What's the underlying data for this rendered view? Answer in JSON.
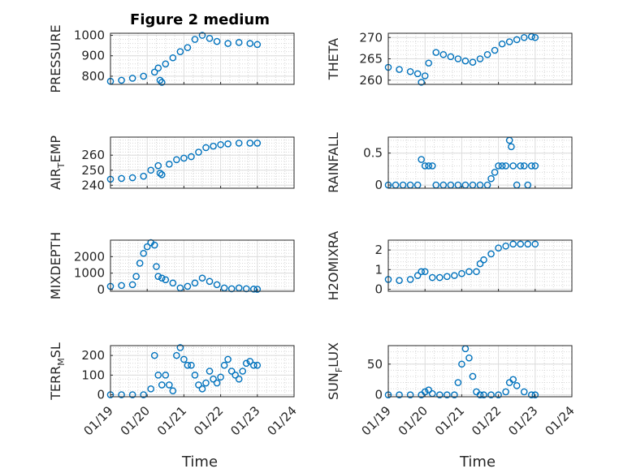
{
  "figure": {
    "title": "Figure 2 medium",
    "xlabel": "Time",
    "date_ticks": [
      "01/19",
      "01/20",
      "01/21",
      "01/22",
      "01/23",
      "01/24"
    ],
    "marker_color": "#0072BD"
  },
  "chart_data": [
    {
      "type": "scatter",
      "ylabel": "PRESSURE",
      "xlim": [
        "01/19",
        "01/24"
      ],
      "ylim": [
        760,
        1010
      ],
      "yticks": [
        "800",
        "900",
        "1000"
      ],
      "ytick_values": [
        800,
        900,
        1000
      ],
      "x": [
        0,
        0.3,
        0.6,
        0.9,
        1.2,
        1.3,
        1.35,
        1.4,
        1.5,
        1.7,
        1.9,
        2.1,
        2.3,
        2.5,
        2.7,
        2.9,
        3.2,
        3.5,
        3.8,
        4.0
      ],
      "y": [
        775,
        780,
        790,
        800,
        820,
        840,
        780,
        770,
        860,
        890,
        920,
        940,
        980,
        1000,
        985,
        970,
        960,
        965,
        960,
        955
      ]
    },
    {
      "type": "scatter",
      "ylabel": "THETA",
      "xlim": [
        "01/19",
        "01/24"
      ],
      "ylim": [
        259,
        271
      ],
      "yticks": [
        "260",
        "265",
        "270"
      ],
      "ytick_values": [
        260,
        265,
        270
      ],
      "x": [
        0,
        0.3,
        0.6,
        0.8,
        0.9,
        1.0,
        1.1,
        1.3,
        1.5,
        1.7,
        1.9,
        2.1,
        2.3,
        2.5,
        2.7,
        2.9,
        3.1,
        3.3,
        3.5,
        3.7,
        3.9,
        4.0
      ],
      "y": [
        263,
        262.5,
        262,
        261.5,
        259.5,
        261,
        264,
        266.5,
        266,
        265.5,
        265,
        264.5,
        264.2,
        265,
        266,
        267,
        268.5,
        269,
        269.5,
        270,
        270.2,
        270
      ]
    },
    {
      "type": "scatter",
      "ylabel": "AIR_TEMP",
      "xlim": [
        "01/19",
        "01/24"
      ],
      "ylim": [
        238,
        272
      ],
      "yticks": [
        "240",
        "250",
        "260"
      ],
      "ytick_values": [
        240,
        250,
        260
      ],
      "x": [
        0,
        0.3,
        0.6,
        0.9,
        1.1,
        1.3,
        1.35,
        1.4,
        1.6,
        1.8,
        2.0,
        2.2,
        2.4,
        2.6,
        2.8,
        3.0,
        3.2,
        3.5,
        3.8,
        4.0
      ],
      "y": [
        244,
        244.5,
        245,
        246,
        250,
        253,
        248,
        247,
        254,
        257,
        258,
        259,
        262,
        265,
        266,
        267,
        267.5,
        268,
        268,
        268
      ]
    },
    {
      "type": "scatter",
      "ylabel": "RAINFALL",
      "xlim": [
        "01/19",
        "01/24"
      ],
      "ylim": [
        -0.05,
        0.75
      ],
      "yticks": [
        "0",
        "0.5"
      ],
      "ytick_values": [
        0,
        0.5
      ],
      "x": [
        0,
        0.2,
        0.4,
        0.6,
        0.8,
        0.9,
        1.0,
        1.1,
        1.2,
        1.3,
        1.5,
        1.7,
        1.9,
        2.1,
        2.3,
        2.5,
        2.7,
        2.8,
        2.9,
        3.0,
        3.1,
        3.2,
        3.3,
        3.35,
        3.4,
        3.5,
        3.6,
        3.7,
        3.8,
        3.9,
        4.0
      ],
      "y": [
        0,
        0,
        0,
        0,
        0,
        0.4,
        0.3,
        0.3,
        0.3,
        0,
        0,
        0,
        0,
        0,
        0,
        0,
        0,
        0.1,
        0.2,
        0.3,
        0.3,
        0.3,
        0.7,
        0.6,
        0.3,
        0,
        0.3,
        0.3,
        0,
        0.3,
        0.3
      ]
    },
    {
      "type": "scatter",
      "ylabel": "MIXDEPTH",
      "xlim": [
        "01/19",
        "01/24"
      ],
      "ylim": [
        -100,
        3000
      ],
      "yticks": [
        "0",
        "1000",
        "2000"
      ],
      "ytick_values": [
        0,
        1000,
        2000
      ],
      "x": [
        0,
        0.3,
        0.6,
        0.7,
        0.8,
        0.9,
        1.0,
        1.1,
        1.2,
        1.25,
        1.3,
        1.4,
        1.5,
        1.7,
        1.9,
        2.1,
        2.3,
        2.5,
        2.7,
        2.9,
        3.1,
        3.3,
        3.5,
        3.7,
        3.9,
        4.0
      ],
      "y": [
        200,
        250,
        300,
        800,
        1600,
        2200,
        2600,
        2850,
        2700,
        1400,
        800,
        700,
        600,
        400,
        100,
        200,
        400,
        700,
        500,
        300,
        100,
        50,
        100,
        50,
        30,
        20
      ]
    },
    {
      "type": "scatter",
      "ylabel": "H2OMIXRA",
      "xlim": [
        "01/19",
        "01/24"
      ],
      "ylim": [
        -0.1,
        2.5
      ],
      "yticks": [
        "0",
        "1",
        "2"
      ],
      "ytick_values": [
        0,
        1,
        2
      ],
      "x": [
        0,
        0.3,
        0.6,
        0.8,
        0.9,
        1.0,
        1.2,
        1.4,
        1.6,
        1.8,
        2.0,
        2.2,
        2.4,
        2.5,
        2.6,
        2.8,
        3.0,
        3.2,
        3.4,
        3.6,
        3.8,
        4.0
      ],
      "y": [
        0.5,
        0.45,
        0.5,
        0.7,
        0.9,
        0.9,
        0.6,
        0.6,
        0.65,
        0.7,
        0.8,
        0.9,
        0.9,
        1.3,
        1.5,
        1.8,
        2.1,
        2.2,
        2.3,
        2.3,
        2.3,
        2.3
      ]
    },
    {
      "type": "scatter",
      "ylabel": "TERR_MSL",
      "xlim": [
        "01/19",
        "01/24"
      ],
      "ylim": [
        -10,
        250
      ],
      "yticks": [
        "0",
        "100",
        "200"
      ],
      "ytick_values": [
        0,
        100,
        200
      ],
      "x": [
        0,
        0.3,
        0.6,
        0.9,
        1.1,
        1.2,
        1.3,
        1.4,
        1.5,
        1.6,
        1.7,
        1.8,
        1.9,
        2.0,
        2.1,
        2.2,
        2.3,
        2.4,
        2.5,
        2.6,
        2.7,
        2.8,
        2.9,
        3.0,
        3.1,
        3.2,
        3.3,
        3.4,
        3.5,
        3.6,
        3.7,
        3.8,
        3.9,
        4.0
      ],
      "y": [
        0,
        0,
        0,
        0,
        30,
        200,
        100,
        50,
        100,
        50,
        20,
        200,
        240,
        180,
        150,
        150,
        100,
        50,
        30,
        60,
        120,
        80,
        60,
        90,
        150,
        180,
        120,
        100,
        80,
        120,
        160,
        170,
        150,
        150
      ]
    },
    {
      "type": "scatter",
      "ylabel": "SUN_FLUX",
      "xlim": [
        "01/19",
        "01/24"
      ],
      "ylim": [
        -3,
        80
      ],
      "yticks": [
        "0",
        "50"
      ],
      "ytick_values": [
        0,
        50
      ],
      "x": [
        0,
        0.3,
        0.6,
        0.9,
        1.0,
        1.1,
        1.2,
        1.4,
        1.6,
        1.8,
        1.9,
        2.0,
        2.1,
        2.2,
        2.3,
        2.4,
        2.5,
        2.6,
        2.8,
        3.0,
        3.2,
        3.3,
        3.4,
        3.5,
        3.7,
        3.9,
        4.0
      ],
      "y": [
        0,
        0,
        0,
        0,
        5,
        8,
        2,
        0,
        0,
        0,
        20,
        50,
        75,
        60,
        30,
        5,
        0,
        0,
        0,
        0,
        5,
        20,
        25,
        15,
        5,
        0,
        0
      ]
    }
  ]
}
